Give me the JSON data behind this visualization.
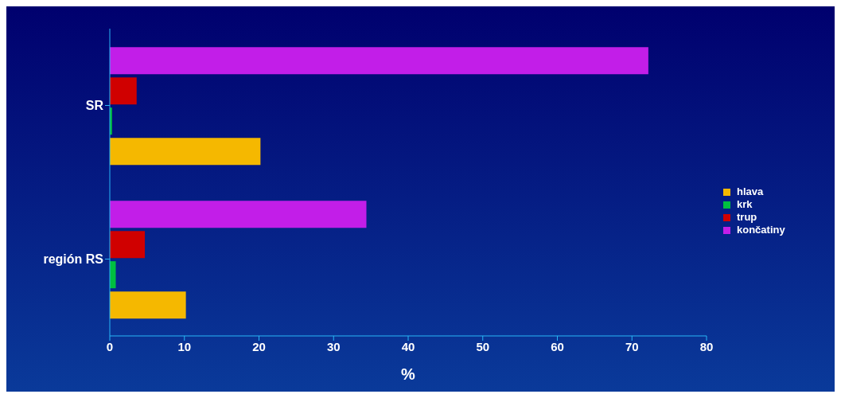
{
  "chart_data": {
    "type": "bar",
    "orientation": "horizontal",
    "categories": [
      "SR",
      "región RS"
    ],
    "series": [
      {
        "name": "hlava",
        "color": "#f5b800",
        "values": [
          20.2,
          10.2
        ]
      },
      {
        "name": "krk",
        "color": "#00c040",
        "values": [
          0.3,
          0.8
        ]
      },
      {
        "name": "trup",
        "color": "#d00000",
        "values": [
          3.6,
          4.7
        ]
      },
      {
        "name": "končatiny",
        "color": "#c21ee8",
        "values": [
          72.2,
          34.4
        ]
      }
    ],
    "xlabel": "%",
    "xlim": [
      0,
      80
    ],
    "xticks": [
      0,
      10,
      20,
      30,
      40,
      50,
      60,
      70,
      80
    ],
    "grid": false,
    "legend": "right"
  }
}
